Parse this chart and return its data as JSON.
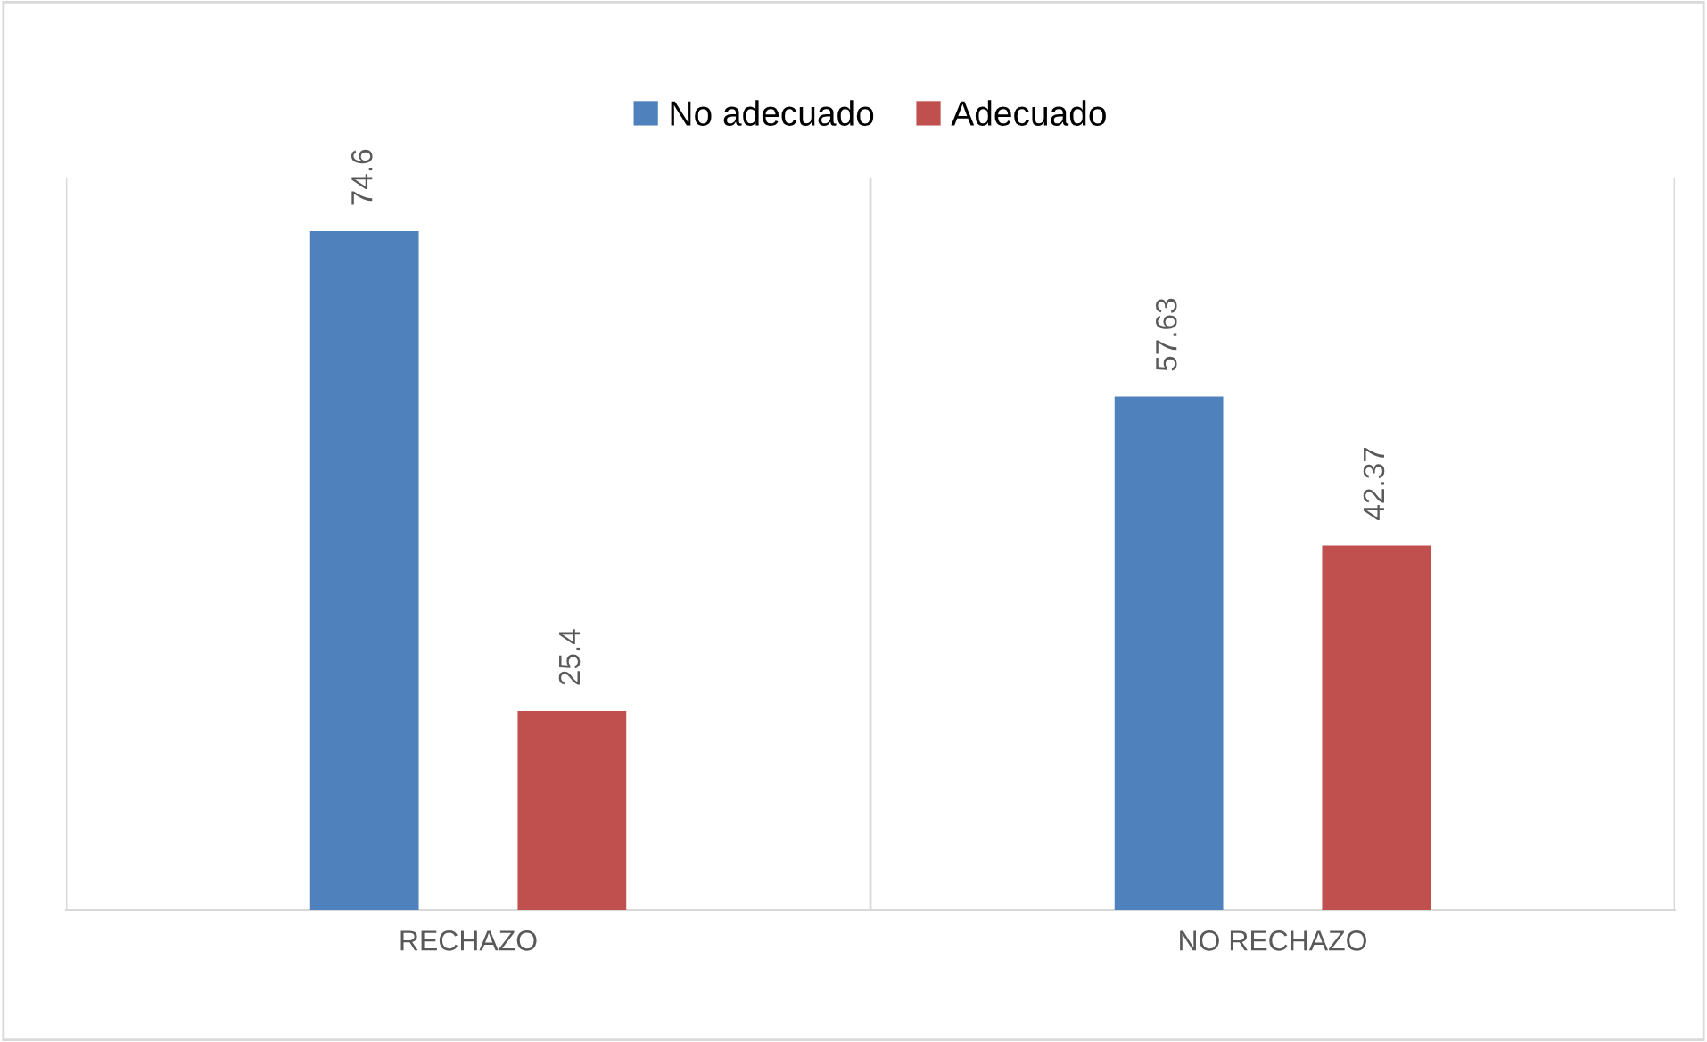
{
  "chart_data": {
    "type": "bar",
    "categories": [
      "RECHAZO",
      "NO RECHAZO"
    ],
    "series": [
      {
        "name": "No adecuado",
        "color": "#4f81bd",
        "values": [
          74.6,
          57.63
        ]
      },
      {
        "name": "Adecuado",
        "color": "#c0504d",
        "values": [
          25.4,
          42.37
        ]
      }
    ],
    "ylim": [
      5,
      80
    ],
    "tick_labels": "x",
    "data_labels": true,
    "legend": "top",
    "grid": "x"
  }
}
